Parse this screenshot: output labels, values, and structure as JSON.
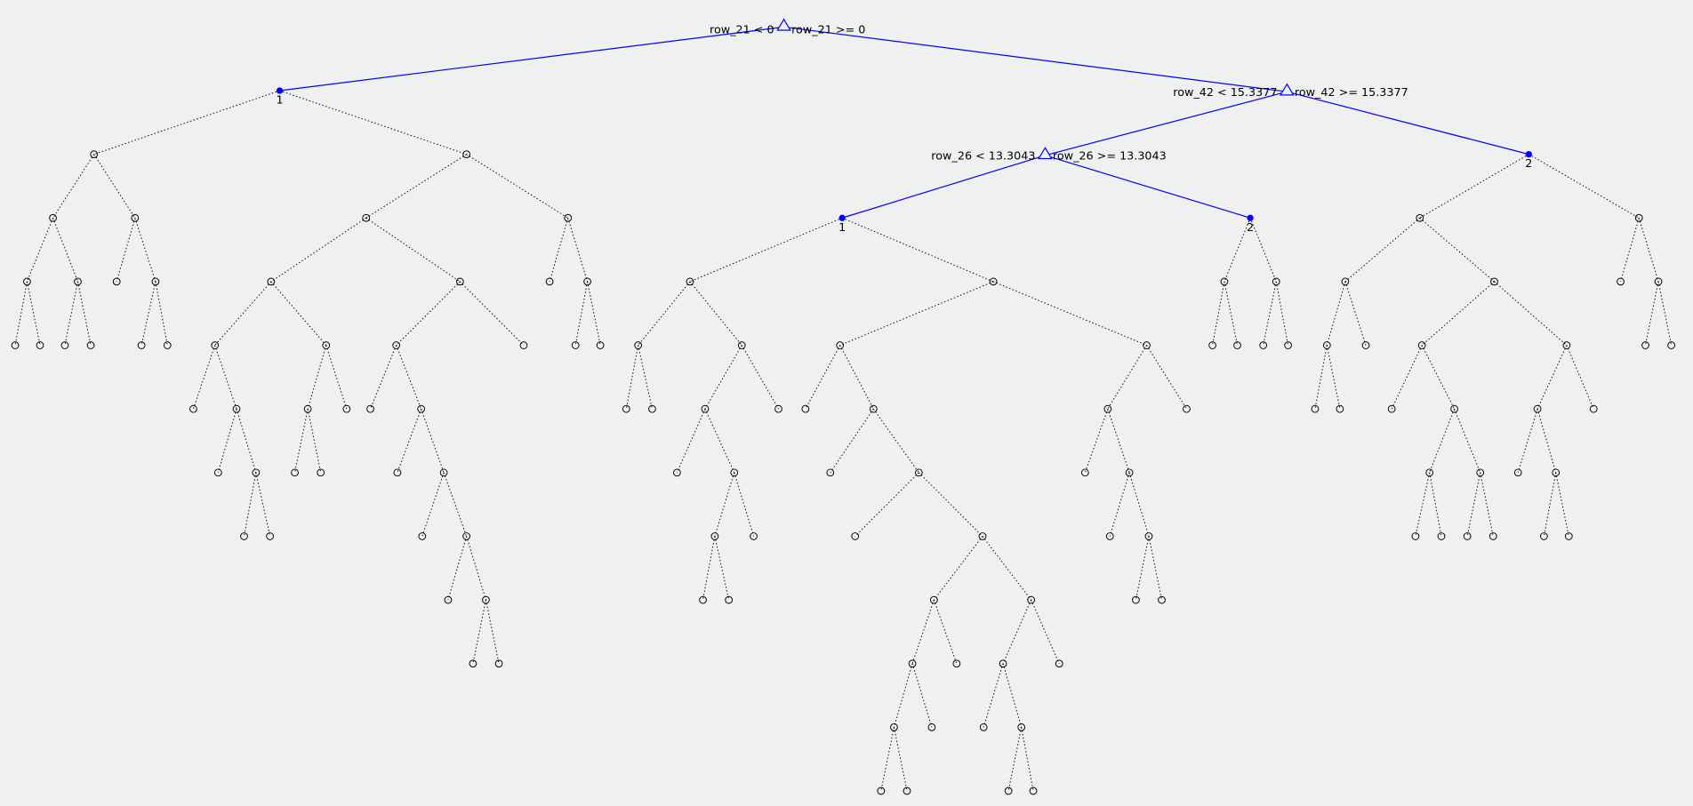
{
  "splits": [
    {
      "left": "row_21 < 0",
      "right": "row_21 >= 0"
    },
    {
      "left": "row_42 < 15.3377",
      "right": "row_42 >= 15.3377"
    },
    {
      "left": "row_26 < 13.3043",
      "right": "row_26 >= 13.3043"
    }
  ],
  "leaves": [
    "1",
    "2",
    "1",
    "2"
  ]
}
